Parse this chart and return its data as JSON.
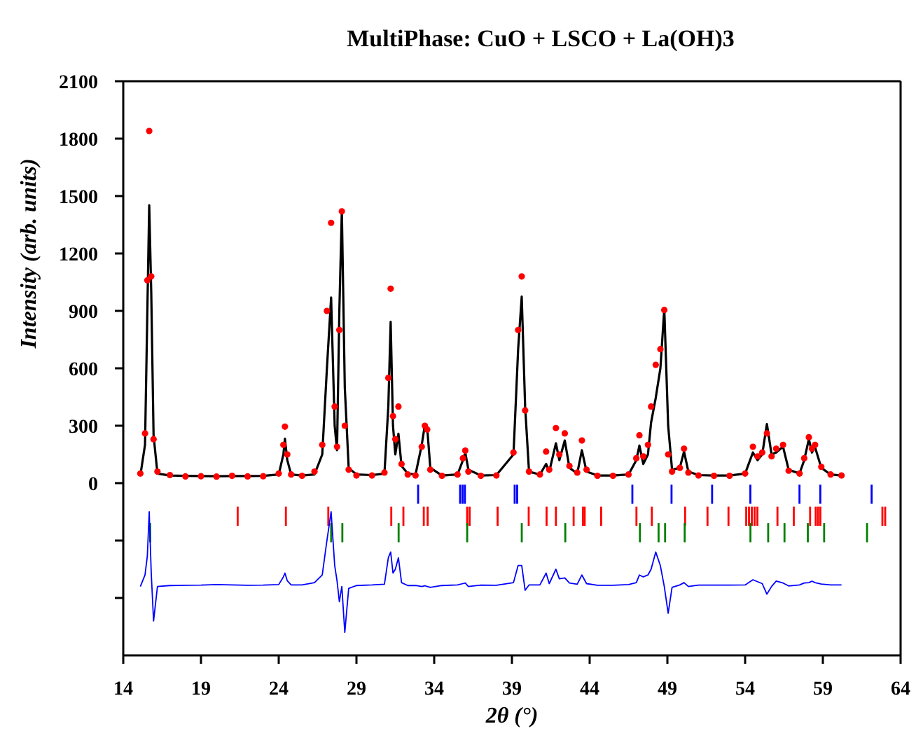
{
  "chart_data": {
    "type": "line",
    "title": "MultiPhase: CuO + LSCO + La(OH)3",
    "xlabel": "2θ (°)",
    "ylabel": "Intensity (arb. units)",
    "xlim": [
      14,
      64
    ],
    "xticks": [
      14,
      19,
      24,
      29,
      34,
      39,
      44,
      49,
      54,
      59,
      64
    ],
    "ylim": [
      -900,
      2100
    ],
    "yticks": [
      {
        "value": -600,
        "label": null
      },
      {
        "value": -300,
        "label": null
      },
      0,
      300,
      600,
      900,
      1200,
      1500,
      1800,
      2100
    ],
    "grid": false,
    "x": [
      15.1,
      15.4,
      15.55,
      15.67,
      15.8,
      15.95,
      16.2,
      17,
      18,
      19,
      20,
      21,
      22,
      23,
      24,
      24.3,
      24.4,
      24.55,
      24.8,
      25.5,
      26.3,
      26.8,
      27.1,
      27.37,
      27.6,
      27.75,
      27.9,
      28.06,
      28.25,
      28.5,
      29,
      30,
      30.8,
      31.05,
      31.2,
      31.35,
      31.5,
      31.7,
      31.9,
      32.3,
      32.8,
      33.2,
      33.4,
      33.55,
      33.75,
      34.5,
      35.5,
      35.85,
      36.0,
      36.2,
      37,
      38,
      39.1,
      39.4,
      39.63,
      39.85,
      40.1,
      40.8,
      41.2,
      41.4,
      41.83,
      42.05,
      42.4,
      42.7,
      43.2,
      43.5,
      43.8,
      44.5,
      45.5,
      46.5,
      47.0,
      47.2,
      47.45,
      47.75,
      47.95,
      48.25,
      48.55,
      48.8,
      49.05,
      49.3,
      49.8,
      50.07,
      50.35,
      51,
      52,
      53,
      54.0,
      54.5,
      54.8,
      55.1,
      55.4,
      55.7,
      56.0,
      56.44,
      56.8,
      57.5,
      57.8,
      58.1,
      58.3,
      58.5,
      58.9,
      59.5,
      60.2
    ],
    "series": [
      {
        "type": "scatter",
        "marker": "circle",
        "color": "#ff0000",
        "values": [
          50,
          260,
          1060,
          1840,
          1080,
          230,
          60,
          42,
          35,
          36,
          34,
          38,
          35,
          36,
          50,
          200,
          295,
          150,
          45,
          38,
          60,
          200,
          900,
          1360,
          400,
          190,
          800,
          1420,
          300,
          70,
          40,
          40,
          55,
          550,
          1016,
          350,
          230,
          400,
          100,
          45,
          40,
          190,
          300,
          280,
          70,
          38,
          45,
          130,
          170,
          60,
          38,
          40,
          160,
          800,
          1080,
          380,
          60,
          45,
          165,
          70,
          288,
          150,
          260,
          90,
          55,
          223,
          70,
          38,
          38,
          45,
          130,
          250,
          140,
          200,
          400,
          618,
          700,
          905,
          150,
          60,
          80,
          180,
          55,
          40,
          38,
          38,
          50,
          190,
          140,
          160,
          260,
          140,
          180,
          200,
          65,
          50,
          130,
          240,
          180,
          200,
          85,
          45,
          40
        ]
      },
      {
        "color": "#000000",
        "values": [
          40,
          200,
          900,
          1452,
          1000,
          250,
          50,
          40,
          38,
          37,
          36,
          37,
          37,
          38,
          45,
          150,
          232,
          120,
          45,
          40,
          45,
          150,
          600,
          970,
          300,
          172,
          900,
          1426,
          500,
          80,
          45,
          42,
          50,
          400,
          843,
          300,
          150,
          258,
          90,
          50,
          45,
          200,
          304,
          290,
          80,
          40,
          45,
          120,
          160,
          70,
          40,
          42,
          150,
          700,
          975,
          400,
          60,
          45,
          100,
          60,
          208,
          120,
          223,
          80,
          50,
          172,
          60,
          40,
          40,
          45,
          120,
          196,
          100,
          150,
          316,
          445,
          600,
          911,
          300,
          70,
          80,
          165,
          60,
          42,
          40,
          40,
          50,
          160,
          120,
          150,
          309,
          150,
          160,
          190,
          70,
          50,
          120,
          230,
          160,
          187,
          80,
          45,
          40
        ]
      },
      {
        "color": "#0000ff",
        "values": [
          -540,
          -480,
          -380,
          -150,
          -470,
          -720,
          -540,
          -535,
          -534,
          -533,
          -530,
          -532,
          -534,
          -533,
          -530,
          -490,
          -470,
          -510,
          -532,
          -532,
          -520,
          -480,
          -300,
          -150,
          -430,
          -510,
          -620,
          -540,
          -780,
          -550,
          -535,
          -532,
          -528,
          -390,
          -360,
          -470,
          -450,
          -390,
          -520,
          -535,
          -535,
          -540,
          -536,
          -540,
          -545,
          -535,
          -532,
          -525,
          -522,
          -540,
          -533,
          -534,
          -520,
          -430,
          -430,
          -560,
          -532,
          -532,
          -470,
          -525,
          -450,
          -500,
          -495,
          -522,
          -528,
          -480,
          -525,
          -534,
          -534,
          -530,
          -520,
          -480,
          -490,
          -480,
          -450,
          -360,
          -432,
          -540,
          -680,
          -545,
          -532,
          -520,
          -540,
          -533,
          -533,
          -533,
          -532,
          -505,
          -515,
          -525,
          -580,
          -540,
          -512,
          -522,
          -537,
          -532,
          -522,
          -520,
          -512,
          -520,
          -527,
          -532,
          -532
        ]
      },
      {
        "type": "bar",
        "color": "#0000ff",
        "x": [
          32.97,
          35.67,
          35.83,
          35.98,
          39.18,
          39.34,
          46.75,
          49.27,
          51.88,
          54.34,
          57.5,
          58.84,
          62.14
        ],
        "base": [
          -108,
          -108,
          -108,
          -108,
          -108,
          -108,
          -108,
          -108,
          -108,
          -108,
          -108,
          -108,
          -108
        ],
        "values": [
          100,
          100,
          100,
          100,
          100,
          100,
          100,
          100,
          100,
          100,
          100,
          100,
          100
        ]
      },
      {
        "type": "bar",
        "color": "#ff0000",
        "x": [
          21.36,
          24.46,
          27.19,
          31.24,
          32.02,
          33.33,
          33.58,
          36.12,
          36.28,
          38.08,
          40.08,
          41.23,
          41.83,
          42.97,
          43.57,
          43.68,
          44.74,
          47.01,
          48.0,
          50.14,
          51.58,
          52.93,
          54.07,
          54.25,
          54.43,
          54.61,
          54.79,
          56.08,
          57.13,
          58.18,
          58.54,
          58.69,
          58.84,
          62.83,
          63.01
        ],
        "base": [
          -223,
          -223,
          -223,
          -223,
          -223,
          -223,
          -223,
          -223,
          -223,
          -223,
          -223,
          -223,
          -223,
          -223,
          -223,
          -223,
          -223,
          -223,
          -223,
          -223,
          -223,
          -223,
          -223,
          -223,
          -223,
          -223,
          -223,
          -223,
          -223,
          -223,
          -223,
          -223,
          -223,
          -223,
          -223
        ],
        "values": [
          100,
          100,
          100,
          100,
          100,
          100,
          100,
          100,
          100,
          100,
          100,
          100,
          100,
          100,
          100,
          100,
          100,
          100,
          100,
          100,
          100,
          100,
          100,
          100,
          100,
          100,
          100,
          100,
          100,
          100,
          100,
          100,
          100,
          100,
          100
        ]
      },
      {
        "type": "bar",
        "color": "#008000",
        "x": [
          15.73,
          27.37,
          28.09,
          31.71,
          36.12,
          39.63,
          42.43,
          47.23,
          48.43,
          48.85,
          50.11,
          54.34,
          55.48,
          56.53,
          58.03,
          59.08,
          61.84
        ],
        "base": [
          -309,
          -309,
          -309,
          -309,
          -309,
          -309,
          -309,
          -309,
          -309,
          -309,
          -309,
          -309,
          -309,
          -309,
          -309,
          -309,
          -309
        ],
        "values": [
          100,
          100,
          100,
          100,
          100,
          100,
          100,
          100,
          100,
          100,
          100,
          100,
          100,
          100,
          100,
          100,
          100
        ]
      }
    ]
  }
}
